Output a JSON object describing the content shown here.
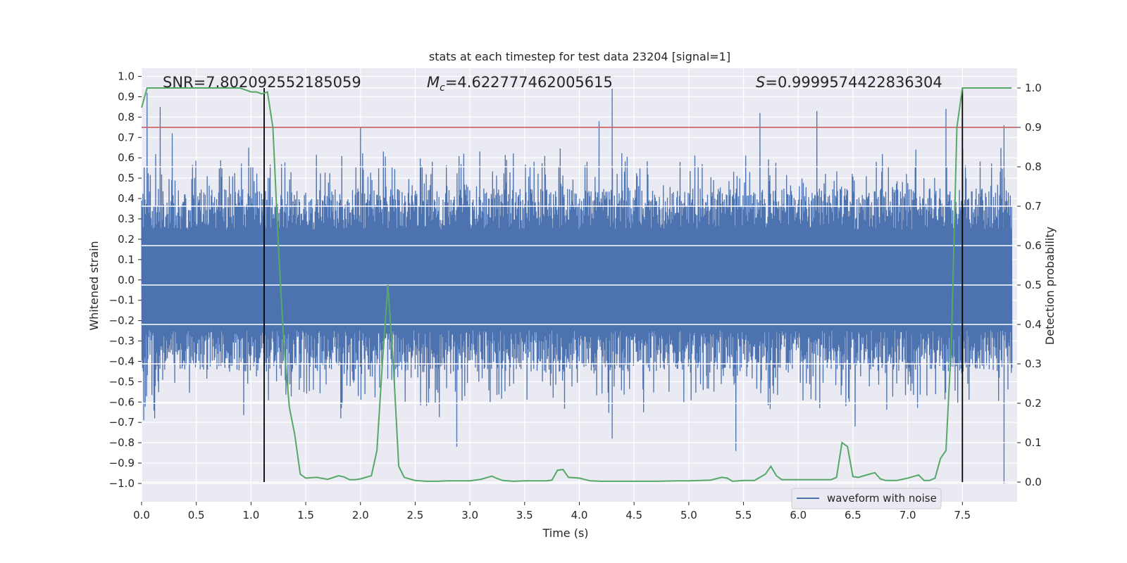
{
  "chart_data": {
    "type": "line",
    "title": "stats at each timestep for test data 23204 [signal=1]",
    "xlabel": "Time (s)",
    "ylabel_left": "Whitened strain",
    "ylabel_right": "Detection probability",
    "xlim": [
      0.0,
      8.0
    ],
    "ylim_left": [
      -1.09,
      1.04
    ],
    "ylim_right": [
      -0.05,
      1.05
    ],
    "x_ticks": [
      "0.0",
      "0.5",
      "1.0",
      "1.5",
      "2.0",
      "2.5",
      "3.0",
      "3.5",
      "4.0",
      "4.5",
      "5.0",
      "5.5",
      "6.0",
      "6.5",
      "7.0",
      "7.5"
    ],
    "y_ticks_left": [
      "1.0",
      "0.9",
      "0.8",
      "0.7",
      "0.6",
      "0.5",
      "0.4",
      "0.3",
      "0.2",
      "0.1",
      "0.0",
      "-0.1",
      "-0.2",
      "-0.3",
      "-0.4",
      "-0.5",
      "-0.6",
      "-0.7",
      "-0.8",
      "-0.9",
      "-1.0"
    ],
    "y_ticks_right": [
      "1.0",
      "0.9",
      "0.8",
      "0.7",
      "0.6",
      "0.5",
      "0.4",
      "0.3",
      "0.2",
      "0.1",
      "0.0"
    ],
    "annotations": {
      "snr": "SNR=7.802092552185059",
      "mc_symbol": "M",
      "mc_sub": "c",
      "mc_value": "=4.622777462005615",
      "s_symbol": "S",
      "s_value": "=0.9999574422836304"
    },
    "threshold_right": 0.9,
    "vertical_markers_x": [
      1.12,
      7.5
    ],
    "waveform": {
      "name": "waveform with noise",
      "color": "#4c72b0",
      "x_range": [
        0.0,
        7.95
      ],
      "typical_amplitude": 0.45,
      "peaks": [
        {
          "x": 0.05,
          "y": 0.92
        },
        {
          "x": 0.17,
          "y": 0.85
        },
        {
          "x": 0.28,
          "y": 0.72
        },
        {
          "x": 1.17,
          "y": 0.5
        },
        {
          "x": 2.0,
          "y": 0.75
        },
        {
          "x": 4.18,
          "y": 0.78
        },
        {
          "x": 4.3,
          "y": 0.94
        },
        {
          "x": 5.65,
          "y": 0.82
        },
        {
          "x": 6.17,
          "y": 0.83
        },
        {
          "x": 7.35,
          "y": 0.84
        },
        {
          "x": 7.88,
          "y": 0.76
        }
      ],
      "troughs": [
        {
          "x": 0.02,
          "y": -0.69
        },
        {
          "x": 0.12,
          "y": -0.68
        },
        {
          "x": 1.82,
          "y": -0.68
        },
        {
          "x": 2.88,
          "y": -0.82
        },
        {
          "x": 4.3,
          "y": -0.78
        },
        {
          "x": 5.43,
          "y": -0.84
        },
        {
          "x": 6.52,
          "y": -0.72
        },
        {
          "x": 7.88,
          "y": -1.0
        }
      ]
    },
    "detection_probability": {
      "color": "#55a868",
      "x": [
        0.0,
        0.05,
        0.1,
        0.2,
        0.3,
        0.4,
        0.5,
        0.6,
        0.7,
        0.8,
        0.9,
        1.0,
        1.05,
        1.1,
        1.15,
        1.2,
        1.25,
        1.3,
        1.35,
        1.4,
        1.45,
        1.5,
        1.6,
        1.7,
        1.8,
        1.85,
        1.9,
        1.95,
        2.0,
        2.1,
        2.15,
        2.2,
        2.25,
        2.3,
        2.35,
        2.4,
        2.5,
        2.6,
        2.7,
        2.8,
        2.9,
        3.0,
        3.1,
        3.2,
        3.25,
        3.3,
        3.4,
        3.5,
        3.6,
        3.7,
        3.75,
        3.8,
        3.85,
        3.9,
        4.0,
        4.1,
        4.2,
        4.3,
        4.5,
        4.7,
        4.9,
        5.0,
        5.2,
        5.3,
        5.35,
        5.4,
        5.5,
        5.6,
        5.7,
        5.75,
        5.8,
        5.85,
        5.9,
        5.95,
        6.0,
        6.1,
        6.2,
        6.3,
        6.35,
        6.4,
        6.45,
        6.5,
        6.55,
        6.6,
        6.7,
        6.75,
        6.8,
        6.9,
        7.0,
        7.1,
        7.15,
        7.2,
        7.25,
        7.3,
        7.35,
        7.4,
        7.45,
        7.5,
        7.55,
        7.6,
        7.7,
        7.8,
        7.95
      ],
      "y": [
        0.95,
        1.0,
        1.0,
        1.0,
        1.0,
        1.0,
        1.0,
        1.0,
        1.0,
        1.0,
        1.0,
        0.99,
        0.99,
        0.985,
        0.99,
        0.9,
        0.6,
        0.35,
        0.19,
        0.12,
        0.02,
        0.01,
        0.012,
        0.007,
        0.016,
        0.013,
        0.006,
        0.006,
        0.008,
        0.016,
        0.08,
        0.3,
        0.5,
        0.3,
        0.04,
        0.012,
        0.004,
        0.002,
        0.002,
        0.003,
        0.003,
        0.003,
        0.007,
        0.015,
        0.009,
        0.004,
        0.002,
        0.003,
        0.003,
        0.003,
        0.005,
        0.03,
        0.032,
        0.012,
        0.01,
        0.003,
        0.002,
        0.002,
        0.002,
        0.002,
        0.003,
        0.003,
        0.005,
        0.012,
        0.01,
        0.002,
        0.004,
        0.004,
        0.02,
        0.04,
        0.016,
        0.006,
        0.006,
        0.006,
        0.006,
        0.006,
        0.006,
        0.006,
        0.012,
        0.1,
        0.09,
        0.014,
        0.012,
        0.016,
        0.024,
        0.008,
        0.004,
        0.004,
        0.01,
        0.018,
        0.004,
        0.004,
        0.01,
        0.06,
        0.08,
        0.36,
        0.9,
        1.0,
        1.0,
        1.0,
        1.0,
        1.0,
        1.0
      ]
    },
    "legend": {
      "label": "waveform with noise",
      "placement": "lower-right"
    }
  }
}
